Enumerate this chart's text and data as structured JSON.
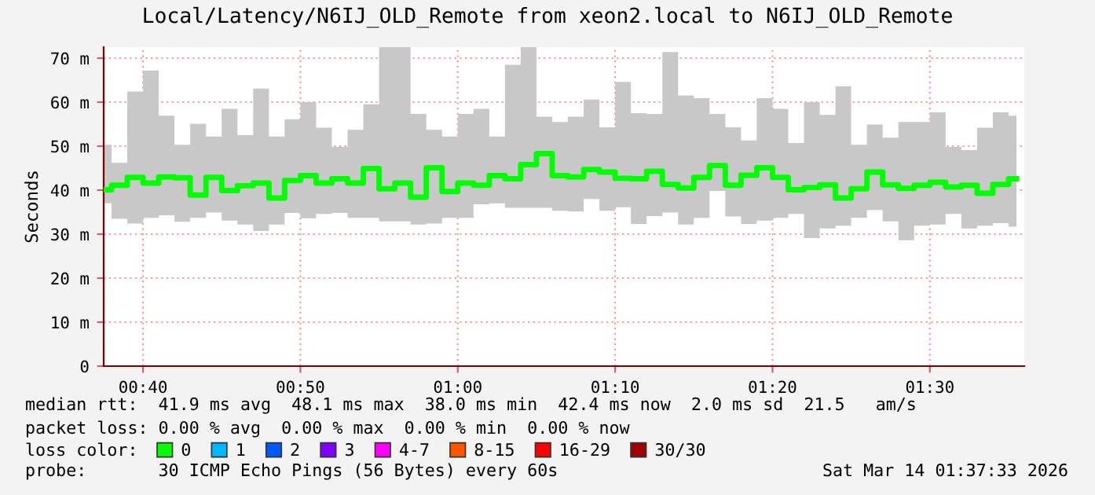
{
  "chart_data": {
    "type": "step",
    "title": "Local/Latency/N6IJ_OLD_Remote from xeon2.local to N6IJ_OLD_Remote",
    "ylabel": "Seconds",
    "legend_title": "loss color:",
    "x": [
      0.625,
      0.6417,
      0.6583,
      0.675,
      0.6917,
      0.7083,
      0.725,
      0.7417,
      0.7583,
      0.775,
      0.7917,
      0.8083,
      0.825,
      0.8417,
      0.8583,
      0.875,
      0.8917,
      0.9083,
      0.925,
      0.9417,
      0.9583,
      0.975,
      0.9917,
      1.0083,
      1.025,
      1.0417,
      1.0583,
      1.075,
      1.0917,
      1.1083,
      1.125,
      1.1417,
      1.1583,
      1.175,
      1.1917,
      1.2083,
      1.225,
      1.2417,
      1.2583,
      1.275,
      1.2917,
      1.3083,
      1.325,
      1.3417,
      1.3583,
      1.375,
      1.3917,
      1.4083,
      1.425,
      1.4417,
      1.4583,
      1.475,
      1.4917,
      1.5083,
      1.525,
      1.5417,
      1.5583,
      1.575,
      1.5917
    ],
    "series": [
      {
        "name": "0",
        "color": "#00ff00",
        "values": [
          40.1,
          41.1,
          42.9,
          41.6,
          43.0,
          42.8,
          38.9,
          42.9,
          39.9,
          41.0,
          41.6,
          38.2,
          42.2,
          43.3,
          41.6,
          42.6,
          41.6,
          44.9,
          40.3,
          41.6,
          38.4,
          45.1,
          39.7,
          41.6,
          41.1,
          43.3,
          42.6,
          45.8,
          48.3,
          43.3,
          43.0,
          44.7,
          44.1,
          42.7,
          42.6,
          44.3,
          41.3,
          40.5,
          42.9,
          45.6,
          41.1,
          43.4,
          45.1,
          42.9,
          40.1,
          40.6,
          41.2,
          38.2,
          40.3,
          44.1,
          41.2,
          40.4,
          41.1,
          41.8,
          40.7,
          41.1,
          39.3,
          41.3,
          42.6
        ],
        "lower": [
          37.0,
          33.5,
          32.4,
          33.7,
          34.3,
          32.8,
          33.7,
          34.9,
          33.1,
          32.2,
          30.7,
          32.2,
          34.8,
          33.6,
          34.6,
          34.8,
          33.7,
          33.7,
          32.9,
          32.9,
          32.2,
          32.4,
          33.7,
          33.7,
          36.8,
          37.0,
          36.0,
          36.0,
          36.0,
          35.3,
          35.2,
          38.0,
          35.3,
          36.1,
          32.3,
          34.1,
          34.9,
          32.2,
          33.7,
          39.8,
          34.0,
          32.3,
          33.1,
          33.7,
          34.6,
          29.1,
          31.3,
          31.9,
          33.7,
          35.5,
          32.9,
          28.6,
          31.9,
          32.2,
          34.6,
          31.3,
          31.9,
          32.5,
          31.7
        ],
        "upper": [
          50.3,
          46.2,
          62.4,
          67.2,
          56.9,
          50.3,
          55.1,
          52.2,
          58.5,
          52.5,
          63.1,
          52.2,
          56.1,
          60.0,
          54.2,
          49.8,
          53.7,
          59.5,
          72.5,
          72.5,
          57.3,
          53.7,
          52.2,
          57.3,
          58.5,
          52.2,
          68.5,
          72.5,
          56.7,
          55.5,
          56.7,
          60.6,
          54.3,
          64.6,
          57.5,
          57.3,
          71.4,
          61.5,
          60.9,
          57.3,
          54.3,
          51.3,
          60.9,
          58.5,
          50.7,
          60.0,
          57.1,
          63.6,
          50.3,
          54.9,
          51.9,
          55.5,
          55.5,
          57.7,
          49.8,
          49.1,
          54.2,
          57.7,
          56.9
        ]
      },
      {
        "name": "1",
        "color": "#00b8ff",
        "values": [
          null,
          null,
          null,
          null,
          null,
          null,
          null,
          null,
          null,
          null,
          null,
          null,
          null,
          null,
          null,
          null,
          null,
          null,
          null,
          null,
          null,
          null,
          null,
          null,
          null,
          null,
          null,
          null,
          null,
          null,
          null,
          null,
          null,
          null,
          null,
          null,
          null,
          null,
          null,
          null,
          null,
          null,
          null,
          null,
          null,
          null,
          null,
          null,
          null,
          null,
          null,
          null,
          null,
          null,
          null,
          null,
          null,
          null,
          null
        ]
      },
      {
        "name": "2",
        "color": "#0059ff",
        "values": [
          null,
          null,
          null,
          null,
          null,
          null,
          null,
          null,
          null,
          null,
          null,
          null,
          null,
          null,
          null,
          null,
          null,
          null,
          null,
          null,
          null,
          null,
          null,
          null,
          null,
          null,
          null,
          null,
          null,
          null,
          null,
          null,
          null,
          null,
          null,
          null,
          null,
          null,
          null,
          null,
          null,
          null,
          null,
          null,
          null,
          null,
          null,
          null,
          null,
          null,
          null,
          null,
          null,
          null,
          null,
          null,
          null,
          null,
          null
        ]
      },
      {
        "name": "3",
        "color": "#7e00ff",
        "values": [
          null,
          null,
          null,
          null,
          null,
          null,
          null,
          null,
          null,
          null,
          null,
          null,
          null,
          null,
          null,
          null,
          null,
          null,
          null,
          null,
          null,
          null,
          null,
          null,
          null,
          null,
          null,
          null,
          null,
          null,
          null,
          null,
          null,
          null,
          null,
          null,
          null,
          null,
          null,
          null,
          null,
          null,
          null,
          null,
          null,
          null,
          null,
          null,
          null,
          null,
          null,
          null,
          null,
          null,
          null,
          null,
          null,
          null,
          null
        ]
      },
      {
        "name": "4-7",
        "color": "#ff00ff",
        "values": [
          null,
          null,
          null,
          null,
          null,
          null,
          null,
          null,
          null,
          null,
          null,
          null,
          null,
          null,
          null,
          null,
          null,
          null,
          null,
          null,
          null,
          null,
          null,
          null,
          null,
          null,
          null,
          null,
          null,
          null,
          null,
          null,
          null,
          null,
          null,
          null,
          null,
          null,
          null,
          null,
          null,
          null,
          null,
          null,
          null,
          null,
          null,
          null,
          null,
          null,
          null,
          null,
          null,
          null,
          null,
          null,
          null,
          null,
          null
        ]
      },
      {
        "name": "8-15",
        "color": "#ff5500",
        "values": [
          null,
          null,
          null,
          null,
          null,
          null,
          null,
          null,
          null,
          null,
          null,
          null,
          null,
          null,
          null,
          null,
          null,
          null,
          null,
          null,
          null,
          null,
          null,
          null,
          null,
          null,
          null,
          null,
          null,
          null,
          null,
          null,
          null,
          null,
          null,
          null,
          null,
          null,
          null,
          null,
          null,
          null,
          null,
          null,
          null,
          null,
          null,
          null,
          null,
          null,
          null,
          null,
          null,
          null,
          null,
          null,
          null,
          null,
          null
        ]
      },
      {
        "name": "16-29",
        "color": "#ff0000",
        "values": [
          null,
          null,
          null,
          null,
          null,
          null,
          null,
          null,
          null,
          null,
          null,
          null,
          null,
          null,
          null,
          null,
          null,
          null,
          null,
          null,
          null,
          null,
          null,
          null,
          null,
          null,
          null,
          null,
          null,
          null,
          null,
          null,
          null,
          null,
          null,
          null,
          null,
          null,
          null,
          null,
          null,
          null,
          null,
          null,
          null,
          null,
          null,
          null,
          null,
          null,
          null,
          null,
          null,
          null,
          null,
          null,
          null,
          null,
          null
        ]
      },
      {
        "name": "30/30",
        "color": "#a10000",
        "values": [
          null,
          null,
          null,
          null,
          null,
          null,
          null,
          null,
          null,
          null,
          null,
          null,
          null,
          null,
          null,
          null,
          null,
          null,
          null,
          null,
          null,
          null,
          null,
          null,
          null,
          null,
          null,
          null,
          null,
          null,
          null,
          null,
          null,
          null,
          null,
          null,
          null,
          null,
          null,
          null,
          null,
          null,
          null,
          null,
          null,
          null,
          null,
          null,
          null,
          null,
          null,
          null,
          null,
          null,
          null,
          null,
          null,
          null,
          null
        ]
      }
    ],
    "xlim": [
      0.625,
      1.6
    ],
    "xticks": [
      {
        "value": 0.66667,
        "label": "00:40"
      },
      {
        "value": 0.83333,
        "label": "00:50"
      },
      {
        "value": 1.0,
        "label": "01:00"
      },
      {
        "value": 1.16667,
        "label": "01:10"
      },
      {
        "value": 1.33333,
        "label": "01:20"
      },
      {
        "value": 1.5,
        "label": "01:30"
      }
    ],
    "ylim": [
      0,
      72.5
    ],
    "yticks": [
      0,
      {
        "value": 10,
        "label": "10 m"
      },
      {
        "value": 20,
        "label": "20 m"
      },
      {
        "value": 30,
        "label": "30 m"
      },
      {
        "value": 40,
        "label": "40 m"
      },
      {
        "value": 50,
        "label": "50 m"
      },
      {
        "value": 60,
        "label": "60 m"
      },
      {
        "value": 70,
        "label": "70 m"
      }
    ],
    "grid": true,
    "legend": "bottom",
    "annotations": [
      "median rtt:  41.9 ms avg  48.1 ms max  38.0 ms min  42.4 ms now  2.0 ms sd  21.5   am/s",
      "packet loss: 0.00 % avg  0.00 % max  0.00 % min  0.00 % now",
      "probe:       30 ICMP Echo Pings (56 Bytes) every 60s",
      "Sat Mar 14 01:37:33 2026"
    ]
  }
}
